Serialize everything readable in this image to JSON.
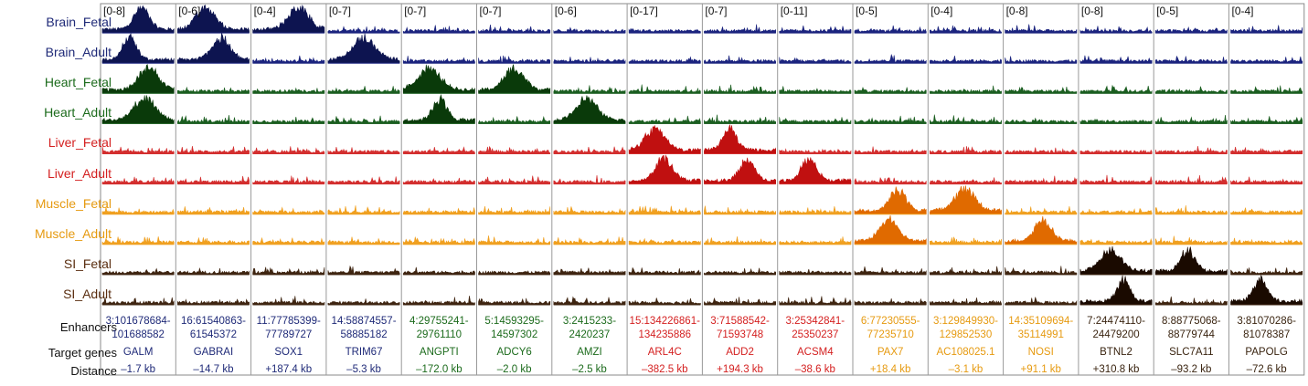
{
  "row_labels": [
    {
      "text": "Brain_Fetal",
      "color": "#1f2a78"
    },
    {
      "text": "Brain_Adult",
      "color": "#1f2a78"
    },
    {
      "text": "Heart_Fetal",
      "color": "#1c6b1c"
    },
    {
      "text": "Heart_Adult",
      "color": "#1c6b1c"
    },
    {
      "text": "Liver_Fetal",
      "color": "#d42020"
    },
    {
      "text": "Liver_Adult",
      "color": "#d42020"
    },
    {
      "text": "Muscle_Fetal",
      "color": "#e69a10"
    },
    {
      "text": "Muscle_Adult",
      "color": "#e69a10"
    },
    {
      "text": "SI_Fetal",
      "color": "#5a2e10"
    },
    {
      "text": "SI_Adult",
      "color": "#5a2e10"
    }
  ],
  "track_colors": [
    "#1a237e",
    "#1a237e",
    "#1b5e20",
    "#1b5e20",
    "#d32f2f",
    "#d32f2f",
    "#f0a020",
    "#f0a020",
    "#3e2410",
    "#3e2410"
  ],
  "peak_colors": [
    "#0d1450",
    "#0d1450",
    "#0a3a0a",
    "#0a3a0a",
    "#c01010",
    "#c01010",
    "#e06a00",
    "#e06a00",
    "#1a0a00",
    "#1a0a00"
  ],
  "footer_labels": {
    "enhancers": "Enhancers",
    "target_genes": "Target genes",
    "distance": "Distance"
  },
  "columns": [
    {
      "range": "[0-8]",
      "enh1": "3:101678684-",
      "enh2": "101688582",
      "gene": "GALM",
      "distance": "–1.7 kb",
      "color": "#1f2a78",
      "peaks": [
        0,
        1,
        2,
        3
      ]
    },
    {
      "range": "[0-6]",
      "enh1": "16:61540863-",
      "enh2": "61545372",
      "gene": "GABRAI",
      "distance": "–14.7 kb",
      "color": "#1f2a78",
      "peaks": [
        0,
        1
      ]
    },
    {
      "range": "[0-4]",
      "enh1": "11:77785399-",
      "enh2": "77789727",
      "gene": "SOX1",
      "distance": "+187.4 kb",
      "color": "#1f2a78",
      "peaks": [
        0
      ]
    },
    {
      "range": "[0-7]",
      "enh1": "14:58874557-",
      "enh2": "58885182",
      "gene": "TRIM67",
      "distance": "–5.3 kb",
      "color": "#1f2a78",
      "peaks": [
        1
      ]
    },
    {
      "range": "[0-7]",
      "enh1": "4:29755241-",
      "enh2": "29761110",
      "gene": "ANGPTI",
      "distance": "–172.0 kb",
      "color": "#1c6b1c",
      "peaks": [
        2,
        3
      ]
    },
    {
      "range": "[0-7]",
      "enh1": "5:14593295-",
      "enh2": "14597302",
      "gene": "ADCY6",
      "distance": "–2.0 kb",
      "color": "#1c6b1c",
      "peaks": [
        2
      ]
    },
    {
      "range": "[0-6]",
      "enh1": "3:2415233-",
      "enh2": "2420237",
      "gene": "AMZI",
      "distance": "–2.5 kb",
      "color": "#1c6b1c",
      "peaks": [
        3
      ]
    },
    {
      "range": "[0-17]",
      "enh1": "15:134226861-",
      "enh2": "134235886",
      "gene": "ARL4C",
      "distance": "–382.5 kb",
      "color": "#d42020",
      "peaks": [
        4,
        5
      ]
    },
    {
      "range": "[0-7]",
      "enh1": "3:71588542-",
      "enh2": "71593748",
      "gene": "ADD2",
      "distance": "+194.3 kb",
      "color": "#d42020",
      "peaks": [
        4,
        5
      ]
    },
    {
      "range": "[0-11]",
      "enh1": "3:25342841-",
      "enh2": "25350237",
      "gene": "ACSM4",
      "distance": "–38.6 kb",
      "color": "#d42020",
      "peaks": [
        5
      ]
    },
    {
      "range": "[0-5]",
      "enh1": "6:77230555-",
      "enh2": "77235710",
      "gene": "PAX7",
      "distance": "+18.4 kb",
      "color": "#e69a10",
      "peaks": [
        6,
        7
      ]
    },
    {
      "range": "[0-4]",
      "enh1": "3:129849930-",
      "enh2": "129852530",
      "gene": "AC108025.1",
      "distance": "–3.1 kb",
      "color": "#e69a10",
      "peaks": [
        6
      ]
    },
    {
      "range": "[0-8]",
      "enh1": "14:35109694-",
      "enh2": "35114991",
      "gene": "NOSI",
      "distance": "+91.1 kb",
      "color": "#e69a10",
      "peaks": [
        7
      ]
    },
    {
      "range": "[0-8]",
      "enh1": "7:24474110-",
      "enh2": "24479200",
      "gene": "BTNL2",
      "distance": "+310.8 kb",
      "color": "#3a2410",
      "peaks": [
        8,
        9
      ]
    },
    {
      "range": "[0-5]",
      "enh1": "8:88775068-",
      "enh2": "88779744",
      "gene": "SLC7A11",
      "distance": "–93.2 kb",
      "color": "#3a2410",
      "peaks": [
        8
      ]
    },
    {
      "range": "[0-4]",
      "enh1": "3:81070286-",
      "enh2": "81078387",
      "gene": "PAPOLG",
      "distance": "–72.6 kb",
      "color": "#3a2410",
      "peaks": [
        9
      ]
    }
  ]
}
